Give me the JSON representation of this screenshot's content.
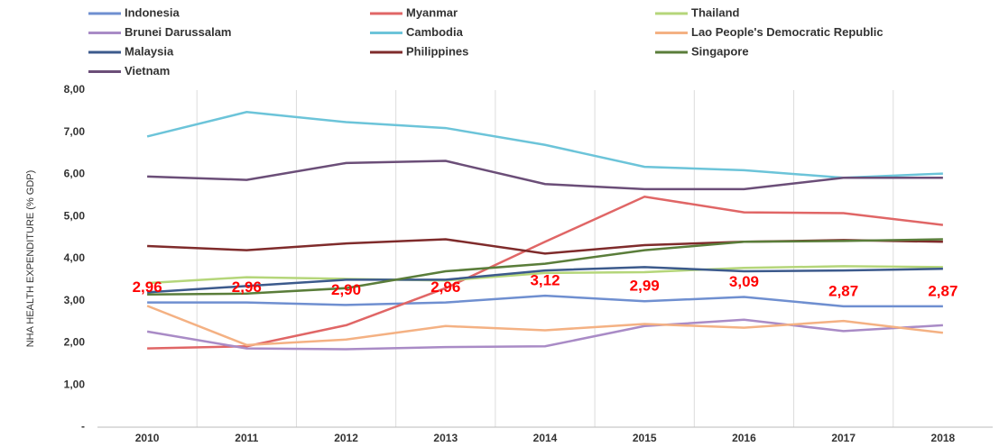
{
  "chart_data": {
    "type": "line",
    "y_label": "NHA HEALTH EXPENDITURE (% GDP)",
    "categories": [
      "2010",
      "2011",
      "2012",
      "2013",
      "2014",
      "2015",
      "2016",
      "2017",
      "2018"
    ],
    "series": [
      {
        "name": "Indonesia",
        "color": "#6f8fd0",
        "values": [
          2.96,
          2.96,
          2.9,
          2.96,
          3.12,
          2.99,
          3.09,
          2.87,
          2.87
        ],
        "value_labels": [
          "2,96",
          "2,96",
          "2,90",
          "2,96",
          "3,12",
          "2,99",
          "3,09",
          "2,87",
          "2,87"
        ],
        "value_label_color": "#ff0000"
      },
      {
        "name": "Myanmar",
        "color": "#e06666",
        "values": [
          1.87,
          1.92,
          2.42,
          3.3,
          4.4,
          5.47,
          5.1,
          5.08,
          4.8
        ]
      },
      {
        "name": "Thailand",
        "color": "#b5d67a",
        "values": [
          3.42,
          3.56,
          3.52,
          3.48,
          3.66,
          3.68,
          3.78,
          3.82,
          3.8
        ]
      },
      {
        "name": "Brunei Darussalam",
        "color": "#a98bc6",
        "values": [
          2.27,
          1.87,
          1.85,
          1.9,
          1.92,
          2.4,
          2.55,
          2.28,
          2.42
        ]
      },
      {
        "name": "Cambodia",
        "color": "#6cc4d9",
        "values": [
          6.9,
          7.48,
          7.24,
          7.1,
          6.7,
          6.18,
          6.1,
          5.92,
          6.02
        ]
      },
      {
        "name": "Lao People's Democratic Republic",
        "color": "#f4b183",
        "values": [
          2.88,
          1.95,
          2.08,
          2.4,
          2.3,
          2.45,
          2.36,
          2.52,
          2.24
        ]
      },
      {
        "name": "Malaysia",
        "color": "#3c5a8c",
        "values": [
          3.2,
          3.35,
          3.5,
          3.5,
          3.72,
          3.8,
          3.7,
          3.72,
          3.76
        ]
      },
      {
        "name": "Philippines",
        "color": "#7f2b2b",
        "values": [
          4.3,
          4.2,
          4.36,
          4.46,
          4.12,
          4.32,
          4.4,
          4.44,
          4.4
        ]
      },
      {
        "name": "Singapore",
        "color": "#5a7d3a",
        "values": [
          3.15,
          3.17,
          3.3,
          3.7,
          3.88,
          4.2,
          4.4,
          4.42,
          4.46
        ]
      },
      {
        "name": "Vietnam",
        "color": "#6b4e78",
        "values": [
          5.95,
          5.87,
          6.27,
          6.32,
          5.77,
          5.65,
          5.65,
          5.92,
          5.92
        ]
      }
    ],
    "ylim": [
      0,
      8
    ],
    "yticks": [
      {
        "value": 0,
        "label": "-"
      },
      {
        "value": 1,
        "label": "1,00"
      },
      {
        "value": 2,
        "label": "2,00"
      },
      {
        "value": 3,
        "label": "3,00"
      },
      {
        "value": 4,
        "label": "4,00"
      },
      {
        "value": 5,
        "label": "5,00"
      },
      {
        "value": 6,
        "label": "6,00"
      },
      {
        "value": 7,
        "label": "7,00"
      },
      {
        "value": 8,
        "label": "8,00"
      }
    ],
    "legend": "top"
  }
}
